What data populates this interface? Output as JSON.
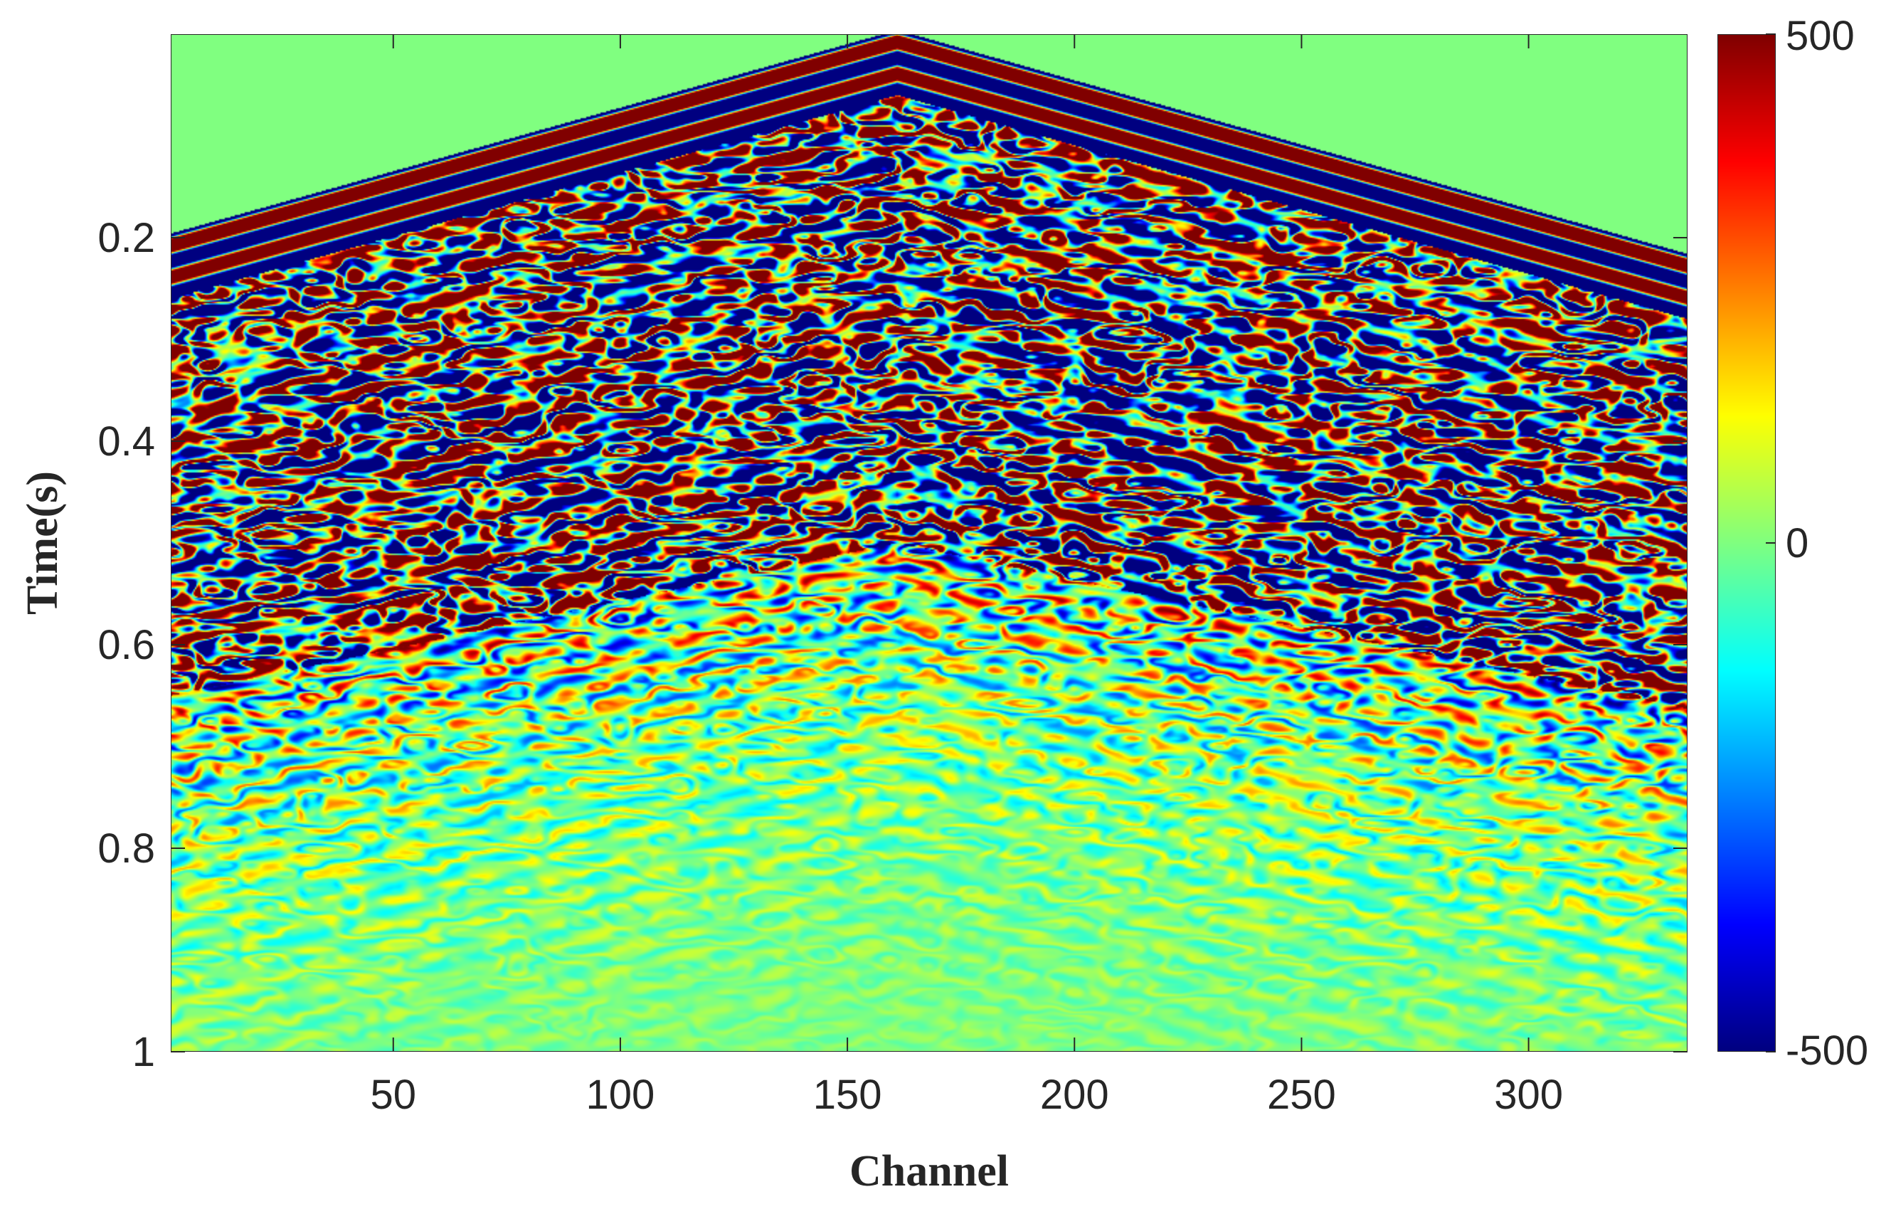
{
  "chart_data": {
    "type": "heatmap",
    "title": "",
    "xlabel": "Channel",
    "ylabel": "Time(s)",
    "xlim": [
      1,
      335
    ],
    "ylim": [
      0,
      1
    ],
    "y_reversed": true,
    "x_ticks": [
      50,
      100,
      150,
      200,
      250,
      300
    ],
    "x_tick_labels": [
      "50",
      "100",
      "150",
      "200",
      "250",
      "300"
    ],
    "y_ticks": [
      0.2,
      0.4,
      0.6,
      0.8,
      1
    ],
    "y_tick_labels": [
      "0.2",
      "0.4",
      "0.6",
      "0.8",
      "1"
    ],
    "colormap": "jet",
    "color_limits": [
      -500,
      500
    ],
    "colorbar_ticks": [
      500,
      0,
      -500
    ],
    "colorbar_tick_labels": [
      "500",
      "0",
      "-500"
    ],
    "background_value": 0,
    "source_channel": 161,
    "first_arrival_apex_time": 0.0,
    "first_arrival_left_time": 0.2,
    "first_arrival_right_time": 0.22,
    "strong_energy_end_time_at_edges": 0.65,
    "strong_energy_end_time_at_apex": 0.5,
    "peak_amplitude": 500
  }
}
